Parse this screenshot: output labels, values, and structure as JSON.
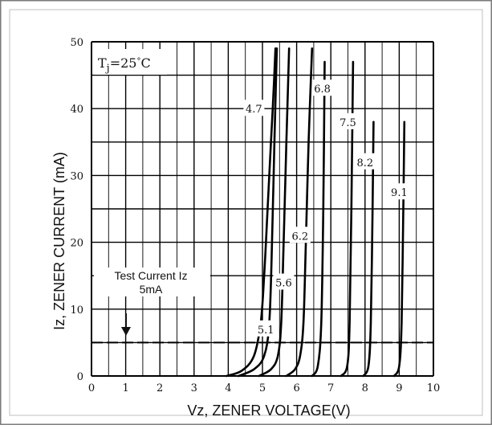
{
  "chart_data": {
    "type": "line",
    "title": "",
    "xlabel": "Vz, ZENER VOLTAGE(V)",
    "ylabel": "Iz, ZENER CURRENT (mA)",
    "xlim": [
      0,
      10
    ],
    "ylim": [
      0,
      50
    ],
    "x_ticks": [
      "0",
      "1",
      "2",
      "3",
      "4",
      "5",
      "6",
      "7",
      "8",
      "9",
      "10"
    ],
    "y_ticks": [
      "0",
      "10",
      "20",
      "30",
      "40",
      "50"
    ],
    "grid": true,
    "condition_label": {
      "prefix": "T",
      "sub": "j",
      "value": "=25",
      "unit": "°C"
    },
    "test_current": {
      "label_line1": "Test Current Iz",
      "label_line2": "5mA",
      "value": 5
    },
    "series": [
      {
        "name": "4.7",
        "points": [
          [
            3.95,
            0
          ],
          [
            4.4,
            0.8
          ],
          [
            4.75,
            3
          ],
          [
            4.95,
            8
          ],
          [
            5.05,
            15
          ],
          [
            5.15,
            25
          ],
          [
            5.25,
            35
          ],
          [
            5.32,
            42
          ],
          [
            5.38,
            49
          ]
        ]
      },
      {
        "name": "5.1",
        "points": [
          [
            4.3,
            0
          ],
          [
            4.75,
            1
          ],
          [
            5.05,
            3
          ],
          [
            5.2,
            8
          ],
          [
            5.28,
            20
          ],
          [
            5.35,
            35
          ],
          [
            5.42,
            49
          ]
        ]
      },
      {
        "name": "5.6",
        "points": [
          [
            4.9,
            0
          ],
          [
            5.25,
            1
          ],
          [
            5.45,
            3
          ],
          [
            5.55,
            8
          ],
          [
            5.62,
            20
          ],
          [
            5.7,
            35
          ],
          [
            5.78,
            49
          ]
        ]
      },
      {
        "name": "6.2",
        "points": [
          [
            5.7,
            0
          ],
          [
            5.95,
            1
          ],
          [
            6.1,
            3
          ],
          [
            6.2,
            8
          ],
          [
            6.27,
            20
          ],
          [
            6.35,
            35
          ],
          [
            6.45,
            49
          ]
        ]
      },
      {
        "name": "6.8",
        "points": [
          [
            6.45,
            0
          ],
          [
            6.62,
            1.5
          ],
          [
            6.72,
            8
          ],
          [
            6.78,
            25
          ],
          [
            6.82,
            47
          ]
        ]
      },
      {
        "name": "7.5",
        "points": [
          [
            7.3,
            0
          ],
          [
            7.48,
            1.5
          ],
          [
            7.55,
            8
          ],
          [
            7.6,
            25
          ],
          [
            7.65,
            47
          ]
        ]
      },
      {
        "name": "8.2",
        "points": [
          [
            7.95,
            0
          ],
          [
            8.1,
            1.5
          ],
          [
            8.17,
            8
          ],
          [
            8.22,
            25
          ],
          [
            8.25,
            38
          ]
        ]
      },
      {
        "name": "9.1",
        "points": [
          [
            8.85,
            0
          ],
          [
            9.0,
            1.5
          ],
          [
            9.07,
            8
          ],
          [
            9.12,
            25
          ],
          [
            9.15,
            38
          ]
        ]
      }
    ],
    "curve_labels": [
      {
        "series": "4.7",
        "x": 4.75,
        "y": 40
      },
      {
        "series": "5.1",
        "x": 5.1,
        "y": 7
      },
      {
        "series": "5.6",
        "x": 5.62,
        "y": 14
      },
      {
        "series": "6.2",
        "x": 6.1,
        "y": 21
      },
      {
        "series": "6.8",
        "x": 6.75,
        "y": 43
      },
      {
        "series": "7.5",
        "x": 7.5,
        "y": 38
      },
      {
        "series": "8.2",
        "x": 8.0,
        "y": 32
      },
      {
        "series": "9.1",
        "x": 9.0,
        "y": 27.5
      }
    ]
  }
}
